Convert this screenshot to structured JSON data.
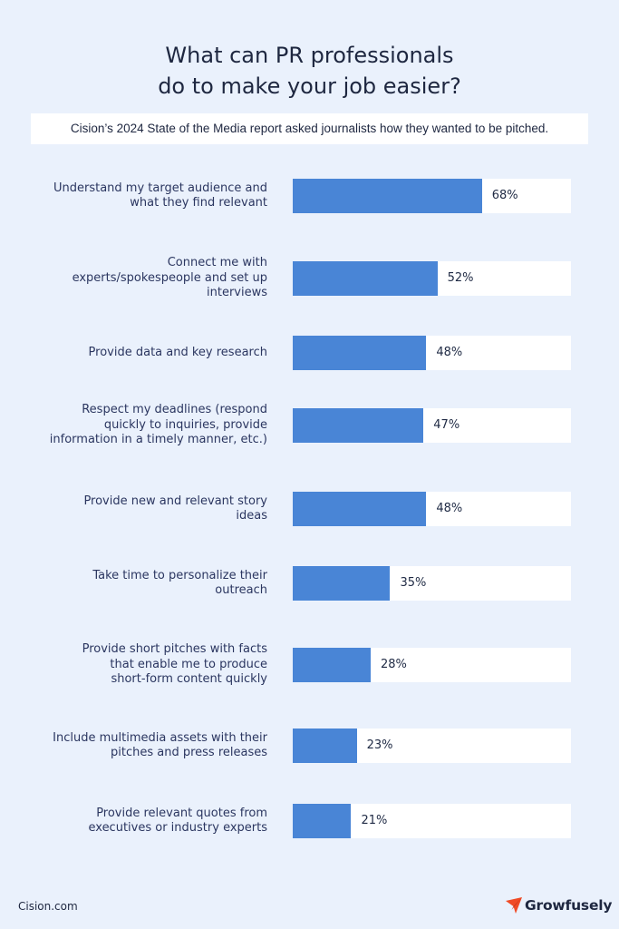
{
  "title_lines": [
    "What can PR professionals",
    "do to make your job easier?"
  ],
  "subtitle": "Cision’s 2024 State of the Media report asked journalists how they wanted to be pitched.",
  "footer": {
    "source": "Cision.com",
    "brand": "Growfusely"
  },
  "colors": {
    "background": "#eaf1fc",
    "bar": "#4985d6",
    "track": "#ffffff",
    "text": "#1e2740",
    "logo": "#f04a25"
  },
  "icons": {
    "brand_logo": "paper-plane-icon"
  },
  "chart_data": {
    "type": "bar",
    "orientation": "horizontal",
    "xlim": [
      0,
      100
    ],
    "grid": false,
    "categories": [
      [
        "Understand my target audience and",
        "what they find relevant"
      ],
      [
        "Connect me with",
        "experts/spokespeople and set up",
        "interviews"
      ],
      [
        "Provide data and key research"
      ],
      [
        "Respect my deadlines (respond",
        "quickly to inquiries, provide",
        "information in a timely manner, etc.)"
      ],
      [
        "Provide new and relevant story",
        "ideas"
      ],
      [
        "Take time to personalize their",
        "outreach"
      ],
      [
        "Provide short pitches with facts",
        "that enable me to produce",
        "short-form content quickly"
      ],
      [
        "Include multimedia assets with their",
        "pitches and press releases"
      ],
      [
        "Provide relevant quotes from",
        "executives or industry experts"
      ]
    ],
    "values": [
      68,
      52,
      48,
      47,
      48,
      35,
      28,
      23,
      21
    ],
    "value_labels": [
      "68%",
      "52%",
      "48%",
      "47%",
      "48%",
      "35%",
      "28%",
      "23%",
      "21%"
    ]
  }
}
